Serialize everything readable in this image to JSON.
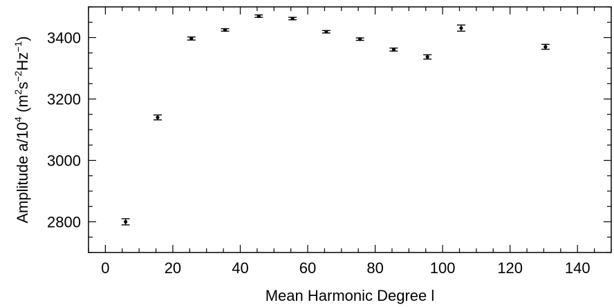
{
  "chart_data": {
    "type": "scatter",
    "title": "",
    "xlabel": "Mean Harmonic Degree l",
    "ylabel": {
      "prefix": "Amplitude a/10",
      "exp4": "4",
      "unit_open": " (m",
      "exp2": "2",
      "s": "s",
      "exp_neg2": "−2",
      "Hz": "Hz",
      "exp_neg1": "−1",
      "unit_close": ")"
    },
    "xlim": [
      -5,
      150
    ],
    "ylim": [
      2700,
      3500
    ],
    "xticks": [
      0,
      20,
      40,
      60,
      80,
      100,
      120,
      140
    ],
    "yticks": [
      2800,
      3000,
      3200,
      3400
    ],
    "x_minor_step": 5,
    "y_minor_step": 50,
    "grid": false,
    "series": [
      {
        "points": [
          {
            "x": 6,
            "y": 2800,
            "err": 10
          },
          {
            "x": 15.5,
            "y": 3140,
            "err": 8
          },
          {
            "x": 25.5,
            "y": 3397,
            "err": 5
          },
          {
            "x": 35.5,
            "y": 3425,
            "err": 4
          },
          {
            "x": 45.5,
            "y": 3470,
            "err": 4
          },
          {
            "x": 55.5,
            "y": 3462,
            "err": 4
          },
          {
            "x": 65.5,
            "y": 3419,
            "err": 4
          },
          {
            "x": 75.5,
            "y": 3395,
            "err": 4
          },
          {
            "x": 85.5,
            "y": 3361,
            "err": 5
          },
          {
            "x": 95.5,
            "y": 3337,
            "err": 7
          },
          {
            "x": 105.5,
            "y": 3431,
            "err": 10
          },
          {
            "x": 130.5,
            "y": 3370,
            "err": 8
          }
        ]
      }
    ]
  }
}
